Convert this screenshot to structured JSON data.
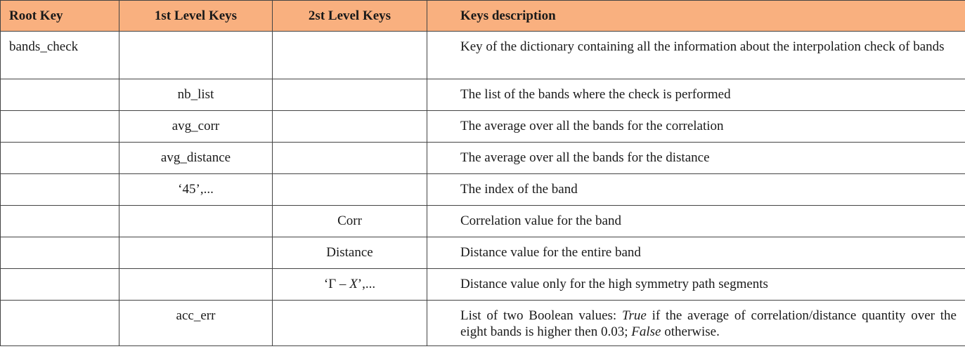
{
  "table": {
    "header": {
      "root": "Root Key",
      "level1": "1st Level Keys",
      "level2": "2st Level Keys",
      "description": "Keys description",
      "bg_color": "#f9b07f"
    },
    "rows": [
      {
        "root": "bands_check",
        "level1": "",
        "level2": "",
        "description": "Key of the dictionary containing all the information about the interpolation check of bands"
      },
      {
        "root": "",
        "level1": "nb_list",
        "level2": "",
        "description": "The list of the bands where the check is performed"
      },
      {
        "root": "",
        "level1": "avg_corr",
        "level2": "",
        "description": "The average over all the bands for the correlation"
      },
      {
        "root": "",
        "level1": "avg_distance",
        "level2": "",
        "description": "The average over all the bands for the distance"
      },
      {
        "root": "",
        "level1": "‘45’,...",
        "level2": "",
        "description": "The index of the band"
      },
      {
        "root": "",
        "level1": "",
        "level2": "Corr",
        "description": "Correlation value for the band"
      },
      {
        "root": "",
        "level1": "",
        "level2": "Distance",
        "description": "Distance value for the entire band"
      },
      {
        "root": "",
        "level1": "",
        "level2_prefix": "‘Γ – ",
        "level2_italic": "X",
        "level2_suffix": "’,...",
        "description": "Distance value only for the high symmetry path segments"
      },
      {
        "root": "",
        "level1": "acc_err",
        "level2": "",
        "description_part1": "List of two Boolean values: ",
        "description_true": "True",
        "description_part2": " if the average of correlation/distance quantity over the eight bands is higher then 0.03; ",
        "description_false": "False",
        "description_part3": " otherwise."
      }
    ]
  }
}
